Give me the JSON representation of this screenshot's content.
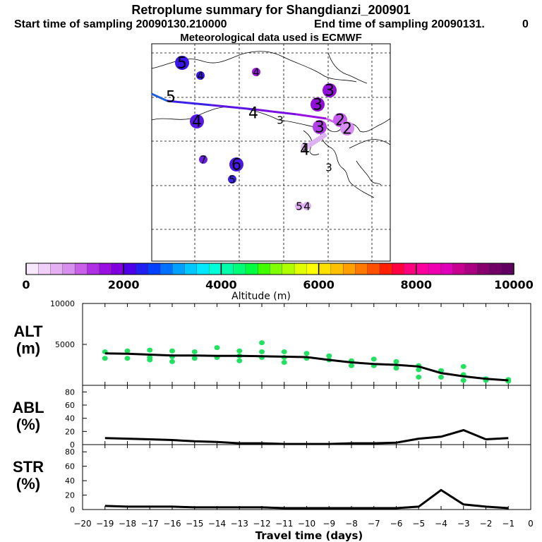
{
  "header": {
    "title": "Retroplume summary for Shangdianzi_200901",
    "start_time": "Start time of sampling 20090130.210000",
    "end_time": "End time of sampling 20090131.",
    "end_suffix": "0",
    "meteo": "Meteorological data used is ECMWF"
  },
  "map": {
    "markers": [
      {
        "label": "5",
        "big": true,
        "color": "#3a16e8",
        "kind": "circle"
      },
      {
        "label": "4",
        "big": false,
        "color": "#3a16e8",
        "kind": "circle"
      },
      {
        "label": "4",
        "big": false,
        "color": "#9a1adf",
        "kind": "circle"
      },
      {
        "label": "3",
        "big": true,
        "color": "#9010d8",
        "kind": "circle"
      },
      {
        "label": "3",
        "big": true,
        "color": "#9010d8",
        "kind": "circle"
      },
      {
        "label": "2",
        "big": true,
        "color": "#c85ef0",
        "kind": "circle"
      },
      {
        "label": "2",
        "big": true,
        "color": "#d88ef5",
        "kind": "circle"
      },
      {
        "label": "3",
        "big": true,
        "color": "#b040e8",
        "kind": "circle"
      },
      {
        "label": "4",
        "big": true,
        "color": "#5518e8",
        "kind": "circle"
      },
      {
        "label": "7",
        "big": false,
        "color": "#6a20e0",
        "kind": "circle"
      },
      {
        "label": "6",
        "big": true,
        "color": "#4a18e8",
        "kind": "circle"
      },
      {
        "label": "5",
        "big": false,
        "color": "#3a22e8",
        "kind": "circle"
      },
      {
        "label": "5",
        "big": false,
        "color": "#e0b0f5",
        "kind": "circle"
      },
      {
        "label": "4",
        "big": false,
        "color": "#e0b0f5",
        "kind": "circle"
      },
      {
        "label": "1",
        "big": false,
        "color": "#e8c0f8",
        "kind": "circle"
      },
      {
        "label": "5",
        "big": true,
        "color": "#000000",
        "kind": "plain"
      },
      {
        "label": "4",
        "big": true,
        "color": "#000000",
        "kind": "plain"
      },
      {
        "label": "3",
        "big": false,
        "color": "#000000",
        "kind": "plain"
      },
      {
        "label": "4",
        "big": true,
        "color": "#000000",
        "kind": "plain"
      },
      {
        "label": "3",
        "big": false,
        "color": "#000000",
        "kind": "plain"
      }
    ]
  },
  "colorbar": {
    "label": "Altitude (m)",
    "tick_labels": [
      "0",
      "2000",
      "4000",
      "6000",
      "8000",
      "10000"
    ],
    "colors": [
      "#f8e8fc",
      "#f0d0f8",
      "#e4b0f2",
      "#d890ee",
      "#c860e8",
      "#b030e4",
      "#9a10e0",
      "#8000e0",
      "#5000e8",
      "#2020f0",
      "#0040ff",
      "#0070ff",
      "#00a0ff",
      "#00c8ff",
      "#00e8ff",
      "#00ffd8",
      "#00ffa8",
      "#00ff78",
      "#00ff40",
      "#40ff00",
      "#80ff00",
      "#b0ff00",
      "#e0ff00",
      "#ffff00",
      "#ffe000",
      "#ffc000",
      "#ffa000",
      "#ff7800",
      "#ff5000",
      "#ff2000",
      "#ff0040",
      "#ff0080",
      "#ff00a0",
      "#f000b0",
      "#e000b8",
      "#c80090",
      "#a80080",
      "#880070",
      "#700068",
      "#600060"
    ]
  },
  "panels": {
    "alt_label": "ALT",
    "alt_unit": "(m)",
    "abl_label": "ABL",
    "abl_unit": "(%)",
    "str_label": "STR",
    "str_unit": "(%)",
    "xlabel": "Travel time (days)"
  },
  "chart_data": [
    {
      "type": "line",
      "name": "ALT",
      "ylabel": "ALT (m)",
      "xlim": [
        -20,
        0
      ],
      "ylim": [
        0,
        10000
      ],
      "yticks": [
        5000,
        10000
      ],
      "x": [
        -19,
        -18,
        -17,
        -16,
        -15,
        -14,
        -13,
        -12,
        -11,
        -10,
        -9,
        -8,
        -7,
        -6,
        -5,
        -4,
        -3,
        -2,
        -1
      ],
      "values": [
        3900,
        3850,
        3750,
        3650,
        3650,
        3600,
        3600,
        3550,
        3500,
        3450,
        3100,
        2800,
        2600,
        2500,
        2300,
        1500,
        1100,
        800,
        600
      ],
      "scatter": [
        [
          -19,
          4100
        ],
        [
          -19,
          3300
        ],
        [
          -18,
          4200
        ],
        [
          -18,
          3300
        ],
        [
          -17,
          4300
        ],
        [
          -17,
          3400
        ],
        [
          -17,
          3100
        ],
        [
          -16,
          4200
        ],
        [
          -16,
          3500
        ],
        [
          -16,
          2900
        ],
        [
          -15,
          4100
        ],
        [
          -15,
          3300
        ],
        [
          -14,
          4600
        ],
        [
          -14,
          3400
        ],
        [
          -13,
          4200
        ],
        [
          -13,
          3600
        ],
        [
          -13,
          3000
        ],
        [
          -12,
          5200
        ],
        [
          -12,
          4100
        ],
        [
          -12,
          3400
        ],
        [
          -11,
          4100
        ],
        [
          -11,
          3400
        ],
        [
          -11,
          2800
        ],
        [
          -10,
          3900
        ],
        [
          -10,
          3300
        ],
        [
          -9,
          3600
        ],
        [
          -9,
          3100
        ],
        [
          -8,
          3000
        ],
        [
          -8,
          2400
        ],
        [
          -7,
          3200
        ],
        [
          -7,
          2400
        ],
        [
          -6,
          2900
        ],
        [
          -6,
          2100
        ],
        [
          -5,
          2400
        ],
        [
          -5,
          1900
        ],
        [
          -5,
          1000
        ],
        [
          -4,
          1800
        ],
        [
          -4,
          1000
        ],
        [
          -3,
          1300
        ],
        [
          -3,
          600
        ],
        [
          -3,
          2300
        ],
        [
          -2,
          800
        ],
        [
          -2,
          600
        ],
        [
          -1,
          700
        ],
        [
          -1,
          500
        ]
      ]
    },
    {
      "type": "line",
      "name": "ABL",
      "ylabel": "ABL (%)",
      "xlim": [
        -20,
        0
      ],
      "ylim": [
        0,
        90
      ],
      "yticks": [
        0,
        20,
        40,
        60,
        80
      ],
      "x": [
        -19,
        -18,
        -17,
        -16,
        -15,
        -14,
        -13,
        -12,
        -11,
        -10,
        -9,
        -8,
        -7,
        -6,
        -5,
        -4,
        -3,
        -2,
        -1
      ],
      "values": [
        10,
        9,
        8,
        7,
        5,
        4,
        2,
        2,
        1,
        1,
        1,
        2,
        2,
        3,
        9,
        12,
        22,
        8,
        10
      ]
    },
    {
      "type": "line",
      "name": "STR",
      "ylabel": "STR (%)",
      "xlim": [
        -20,
        0
      ],
      "ylim": [
        0,
        90
      ],
      "yticks": [
        0,
        20,
        40,
        60,
        80
      ],
      "xlabel": "Travel time (days)",
      "xticks": [
        -20,
        -19,
        -18,
        -17,
        -16,
        -15,
        -14,
        -13,
        -12,
        -11,
        -10,
        -9,
        -8,
        -7,
        -6,
        -5,
        -4,
        -3,
        -2,
        -1,
        0
      ],
      "x": [
        -19,
        -18,
        -17,
        -16,
        -15,
        -14,
        -13,
        -12,
        -11,
        -10,
        -9,
        -8,
        -7,
        -6,
        -5,
        -4,
        -3,
        -2,
        -1
      ],
      "values": [
        5,
        4,
        4,
        4,
        3,
        3,
        3,
        3,
        2,
        2,
        2,
        2,
        2,
        2,
        4,
        27,
        7,
        4,
        2
      ]
    }
  ]
}
